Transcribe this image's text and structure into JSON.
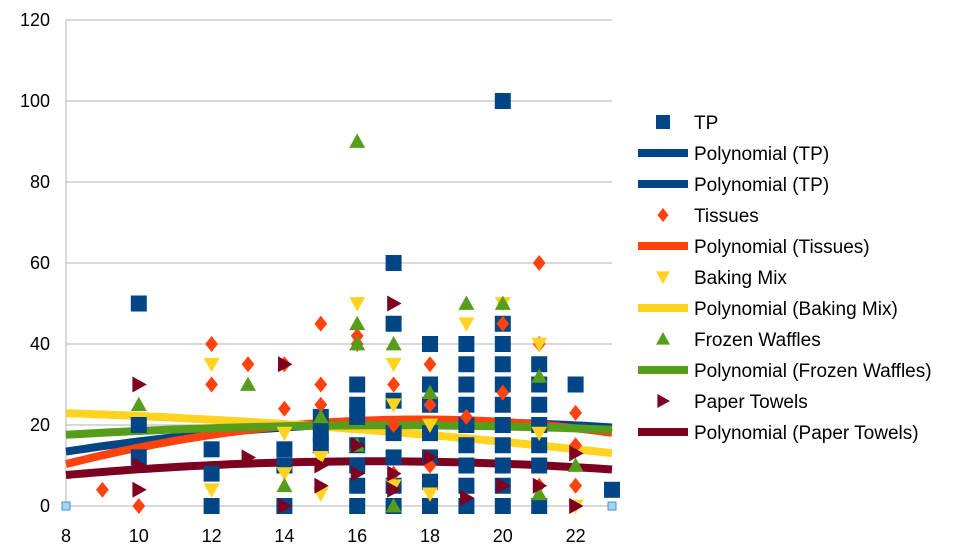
{
  "chart_data": {
    "type": "scatter",
    "xlim": [
      8,
      23
    ],
    "ylim": [
      0,
      120
    ],
    "x_ticks": [
      8,
      10,
      12,
      14,
      16,
      18,
      20,
      22
    ],
    "y_ticks": [
      0,
      20,
      40,
      60,
      80,
      100,
      120
    ],
    "grid": "horizontal",
    "legend_position": "right",
    "corner_points": [
      [
        8,
        0
      ],
      [
        23,
        0
      ]
    ],
    "series": [
      {
        "name": "TP",
        "marker": "square",
        "color": "#004586",
        "points": [
          [
            10,
            50
          ],
          [
            10,
            12
          ],
          [
            10,
            20
          ],
          [
            12,
            14
          ],
          [
            12,
            8
          ],
          [
            12,
            0
          ],
          [
            14,
            14
          ],
          [
            14,
            10
          ],
          [
            14,
            0
          ],
          [
            15,
            22
          ],
          [
            15,
            18
          ],
          [
            15,
            15
          ],
          [
            16,
            30
          ],
          [
            16,
            25
          ],
          [
            16,
            22
          ],
          [
            16,
            15
          ],
          [
            16,
            10
          ],
          [
            16,
            5
          ],
          [
            16,
            0
          ],
          [
            17,
            60
          ],
          [
            17,
            45
          ],
          [
            17,
            26
          ],
          [
            17,
            18
          ],
          [
            17,
            12
          ],
          [
            17,
            5
          ],
          [
            17,
            0
          ],
          [
            18,
            40
          ],
          [
            18,
            30
          ],
          [
            18,
            25
          ],
          [
            18,
            18
          ],
          [
            18,
            12
          ],
          [
            18,
            6
          ],
          [
            18,
            0
          ],
          [
            19,
            40
          ],
          [
            19,
            35
          ],
          [
            19,
            30
          ],
          [
            19,
            25
          ],
          [
            19,
            20
          ],
          [
            19,
            15
          ],
          [
            19,
            10
          ],
          [
            19,
            5
          ],
          [
            19,
            0
          ],
          [
            20,
            100
          ],
          [
            20,
            45
          ],
          [
            20,
            40
          ],
          [
            20,
            35
          ],
          [
            20,
            30
          ],
          [
            20,
            25
          ],
          [
            20,
            20
          ],
          [
            20,
            15
          ],
          [
            20,
            10
          ],
          [
            20,
            5
          ],
          [
            20,
            0
          ],
          [
            21,
            35
          ],
          [
            21,
            30
          ],
          [
            21,
            25
          ],
          [
            21,
            20
          ],
          [
            21,
            15
          ],
          [
            21,
            10
          ],
          [
            21,
            0
          ],
          [
            22,
            30
          ],
          [
            23,
            4
          ]
        ]
      },
      {
        "name": "Polynomial (TP)",
        "type": "trend",
        "color": "#004586",
        "coeffs": [
          -1.96,
          2.455,
          -0.0664
        ]
      },
      {
        "name": "Polynomial (TP)",
        "type": "trend-legend-only",
        "color": "#004586"
      },
      {
        "name": "Tissues",
        "marker": "diamond",
        "color": "#ff420e",
        "points": [
          [
            9,
            4
          ],
          [
            10,
            0
          ],
          [
            12,
            40
          ],
          [
            12,
            30
          ],
          [
            13,
            35
          ],
          [
            14,
            35
          ],
          [
            14,
            24
          ],
          [
            15,
            45
          ],
          [
            15,
            30
          ],
          [
            15,
            25
          ],
          [
            16,
            42
          ],
          [
            16,
            40
          ],
          [
            17,
            30
          ],
          [
            17,
            20
          ],
          [
            17,
            8
          ],
          [
            18,
            35
          ],
          [
            18,
            25
          ],
          [
            18,
            10
          ],
          [
            19,
            22
          ],
          [
            20,
            45
          ],
          [
            20,
            28
          ],
          [
            21,
            60
          ],
          [
            21,
            40
          ],
          [
            21,
            5
          ],
          [
            22,
            23
          ],
          [
            22,
            15
          ],
          [
            22,
            5
          ]
        ]
      },
      {
        "name": "Polynomial (Tissues)",
        "type": "trend",
        "color": "#ff420e",
        "coeffs": [
          -15.26,
          4.138,
          -0.1169
        ]
      },
      {
        "name": "Baking Mix",
        "marker": "triangle-down",
        "color": "#ffd320",
        "points": [
          [
            12,
            35
          ],
          [
            12,
            4
          ],
          [
            14,
            18
          ],
          [
            14,
            8
          ],
          [
            15,
            12
          ],
          [
            15,
            3
          ],
          [
            16,
            50
          ],
          [
            17,
            35
          ],
          [
            17,
            25
          ],
          [
            17,
            5
          ],
          [
            18,
            20
          ],
          [
            18,
            3
          ],
          [
            19,
            45
          ],
          [
            20,
            50
          ],
          [
            21,
            40
          ],
          [
            21,
            18
          ],
          [
            22,
            0
          ]
        ]
      },
      {
        "name": "Polynomial (Baking Mix)",
        "type": "trend",
        "color": "#ffd320",
        "coeffs": [
          23.91,
          0.063,
          -0.0233
        ]
      },
      {
        "name": "Frozen Waffles",
        "marker": "triangle-up",
        "color": "#579d1c",
        "points": [
          [
            10,
            25
          ],
          [
            13,
            30
          ],
          [
            14,
            5
          ],
          [
            15,
            22
          ],
          [
            16,
            90
          ],
          [
            16,
            45
          ],
          [
            16,
            40
          ],
          [
            16,
            15
          ],
          [
            17,
            40
          ],
          [
            17,
            0
          ],
          [
            18,
            28
          ],
          [
            19,
            50
          ],
          [
            20,
            50
          ],
          [
            21,
            32
          ],
          [
            21,
            3
          ],
          [
            22,
            10
          ]
        ]
      },
      {
        "name": "Polynomial (Frozen Waffles)",
        "type": "trend",
        "color": "#579d1c",
        "coeffs": [
          11.48,
          1.0,
          -0.0296
        ]
      },
      {
        "name": "Paper Towels",
        "marker": "triangle-right",
        "color": "#7e0021",
        "points": [
          [
            10,
            30
          ],
          [
            10,
            10
          ],
          [
            10,
            4
          ],
          [
            13,
            12
          ],
          [
            14,
            35
          ],
          [
            14,
            0
          ],
          [
            15,
            10
          ],
          [
            15,
            5
          ],
          [
            16,
            15
          ],
          [
            16,
            8
          ],
          [
            17,
            50
          ],
          [
            17,
            8
          ],
          [
            17,
            4
          ],
          [
            18,
            12
          ],
          [
            19,
            2
          ],
          [
            20,
            5
          ],
          [
            21,
            5
          ],
          [
            22,
            13
          ],
          [
            22,
            0
          ]
        ]
      },
      {
        "name": "Polynomial (Paper Towels)",
        "type": "trend",
        "color": "#7e0021",
        "coeffs": [
          -1.8,
          1.56,
          -0.0474
        ]
      }
    ]
  }
}
